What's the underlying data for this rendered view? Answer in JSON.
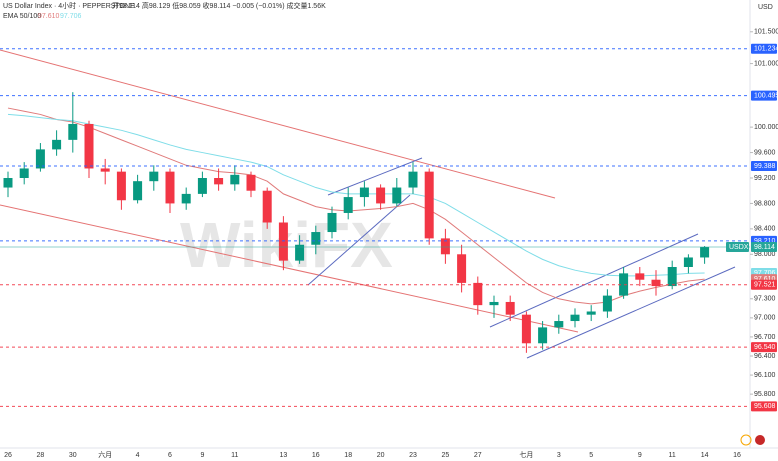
{
  "chart_data": {
    "type": "candlestick",
    "header": {
      "symbol": "US Dollar Index · 4小时 · PEPPERSTONE",
      "ohlc": "开98.114 高98.129 低98.059 收98.114 −0.005 (−0.01%) 成交量1.56K",
      "indicator": "EMA 50/100",
      "indicator_values": [
        "97.610",
        "97.706"
      ],
      "currency": "USD"
    },
    "watermark": "WikiFX",
    "categories": [
      "26",
      null,
      "28",
      null,
      "30",
      null,
      "六月",
      null,
      "4",
      null,
      "6",
      null,
      "9",
      null,
      "11",
      null,
      null,
      "13",
      null,
      "16",
      null,
      "18",
      null,
      "20",
      null,
      "23",
      null,
      "25",
      null,
      "27",
      null,
      null,
      "七月",
      null,
      "3",
      null,
      "5",
      null,
      null,
      "9",
      null,
      "11",
      null,
      "14",
      null,
      "16"
    ],
    "open": [
      99.05,
      99.2,
      99.35,
      99.65,
      99.8,
      100.05,
      99.35,
      99.3,
      98.85,
      99.15,
      99.3,
      98.8,
      98.95,
      99.2,
      99.1,
      99.25,
      99.0,
      98.5,
      97.9,
      98.15,
      98.35,
      98.65,
      98.9,
      99.05,
      98.8,
      99.05,
      99.3,
      98.25,
      98.0,
      97.55,
      97.2,
      97.25,
      97.05,
      96.6,
      96.85,
      96.95,
      97.05,
      97.1,
      97.35,
      97.7,
      97.6,
      97.5,
      97.8,
      97.95,
      null,
      null
    ],
    "high": [
      99.3,
      99.45,
      99.75,
      99.95,
      100.55,
      100.1,
      99.5,
      99.35,
      99.25,
      99.4,
      99.35,
      99.05,
      99.3,
      99.35,
      99.4,
      99.3,
      99.05,
      98.6,
      98.3,
      98.45,
      98.75,
      99.05,
      99.15,
      99.1,
      99.2,
      99.45,
      99.35,
      98.4,
      98.15,
      97.65,
      97.35,
      97.35,
      97.1,
      96.95,
      97.05,
      97.15,
      97.2,
      97.45,
      97.8,
      97.8,
      97.75,
      97.9,
      98.0,
      98.13,
      null,
      null
    ],
    "low": [
      98.9,
      99.1,
      99.3,
      99.55,
      99.6,
      99.2,
      99.1,
      98.7,
      98.8,
      99.0,
      98.65,
      98.7,
      98.9,
      99.0,
      99.0,
      98.9,
      98.4,
      97.75,
      97.85,
      98.0,
      98.25,
      98.55,
      98.75,
      98.7,
      98.75,
      98.95,
      98.15,
      97.85,
      97.4,
      97.05,
      97.0,
      96.95,
      96.45,
      96.5,
      96.75,
      96.85,
      96.95,
      97.0,
      97.3,
      97.5,
      97.35,
      97.45,
      97.7,
      97.85,
      null,
      null
    ],
    "close": [
      99.2,
      99.35,
      99.65,
      99.8,
      100.05,
      99.35,
      99.3,
      98.85,
      99.15,
      99.3,
      98.8,
      98.95,
      99.2,
      99.1,
      99.25,
      99.0,
      98.5,
      97.9,
      98.15,
      98.35,
      98.65,
      98.9,
      99.05,
      98.8,
      99.05,
      99.3,
      98.25,
      98.0,
      97.55,
      97.2,
      97.25,
      97.05,
      96.6,
      96.85,
      96.95,
      97.05,
      97.1,
      97.35,
      97.7,
      97.6,
      97.5,
      97.8,
      97.95,
      98.114,
      null,
      null
    ],
    "up_color": "#089981",
    "down_color": "#f23645",
    "series": [
      {
        "name": "EMA 50",
        "color": "#e07a7a",
        "values": [
          100.3,
          100.25,
          100.2,
          100.12,
          100.08,
          100.0,
          99.9,
          99.8,
          99.7,
          99.6,
          99.5,
          99.4,
          99.35,
          99.3,
          99.28,
          99.25,
          99.15,
          98.95,
          98.85,
          98.75,
          98.7,
          98.68,
          98.7,
          98.72,
          98.75,
          98.8,
          98.7,
          98.55,
          98.35,
          98.15,
          97.95,
          97.75,
          97.55,
          97.4,
          97.3,
          97.25,
          97.22,
          97.25,
          97.35,
          97.42,
          97.48,
          97.53,
          97.58,
          97.61,
          null,
          null
        ]
      },
      {
        "name": "EMA 100",
        "color": "#7fdde8",
        "values": [
          100.2,
          100.18,
          100.15,
          100.12,
          100.1,
          100.05,
          100.0,
          99.95,
          99.88,
          99.8,
          99.72,
          99.65,
          99.6,
          99.55,
          99.5,
          99.45,
          99.38,
          99.25,
          99.15,
          99.05,
          98.98,
          98.95,
          98.95,
          98.95,
          98.95,
          98.95,
          98.9,
          98.8,
          98.65,
          98.5,
          98.35,
          98.2,
          98.05,
          97.92,
          97.82,
          97.75,
          97.7,
          97.67,
          97.66,
          97.66,
          97.67,
          97.68,
          97.7,
          97.706,
          null,
          null
        ]
      }
    ],
    "ylim": [
      95,
      102
    ],
    "yticks": [
      {
        "value": 101.5,
        "label": "101.500"
      },
      {
        "value": 101,
        "label": "101.000"
      },
      {
        "value": 100,
        "label": "100.000"
      },
      {
        "value": 99.6,
        "label": "99.600"
      },
      {
        "value": 99.2,
        "label": "99.200"
      },
      {
        "value": 98.8,
        "label": "98.800"
      },
      {
        "value": 98.4,
        "label": "98.400"
      },
      {
        "value": 98,
        "label": "98.000"
      },
      {
        "value": 97.3,
        "label": "97.300"
      },
      {
        "value": 97,
        "label": "97.000"
      },
      {
        "value": 96.7,
        "label": "96.700"
      },
      {
        "value": 96.4,
        "label": "96.400"
      },
      {
        "value": 96.1,
        "label": "96.100"
      },
      {
        "value": 95.8,
        "label": "95.800"
      }
    ],
    "price_lines": [
      {
        "value": 101.234,
        "color": "#2962ff",
        "style": "dashed"
      },
      {
        "value": 100.495,
        "color": "#2962ff",
        "style": "dashed"
      },
      {
        "value": 99.388,
        "color": "#2962ff",
        "style": "dashed"
      },
      {
        "value": 98.21,
        "label": "98.210",
        "color": "#2962ff",
        "style": "dashed"
      },
      {
        "value": 98.114,
        "symbol": "USDX",
        "color": "#26a69a",
        "style": "solid"
      },
      {
        "value": 97.706,
        "color": "#7fdde8",
        "style": "none"
      },
      {
        "value": 97.61,
        "label": "97.610",
        "color": "#e07a7a",
        "style": "none"
      },
      {
        "value": 97.521,
        "color": "#f23645",
        "style": "dashed"
      },
      {
        "value": 96.54,
        "label": "96.540",
        "color": "#f23645",
        "style": "dashed"
      },
      {
        "value": 95.608,
        "color": "#f23645",
        "style": "dashed"
      }
    ],
    "grid": false
  }
}
